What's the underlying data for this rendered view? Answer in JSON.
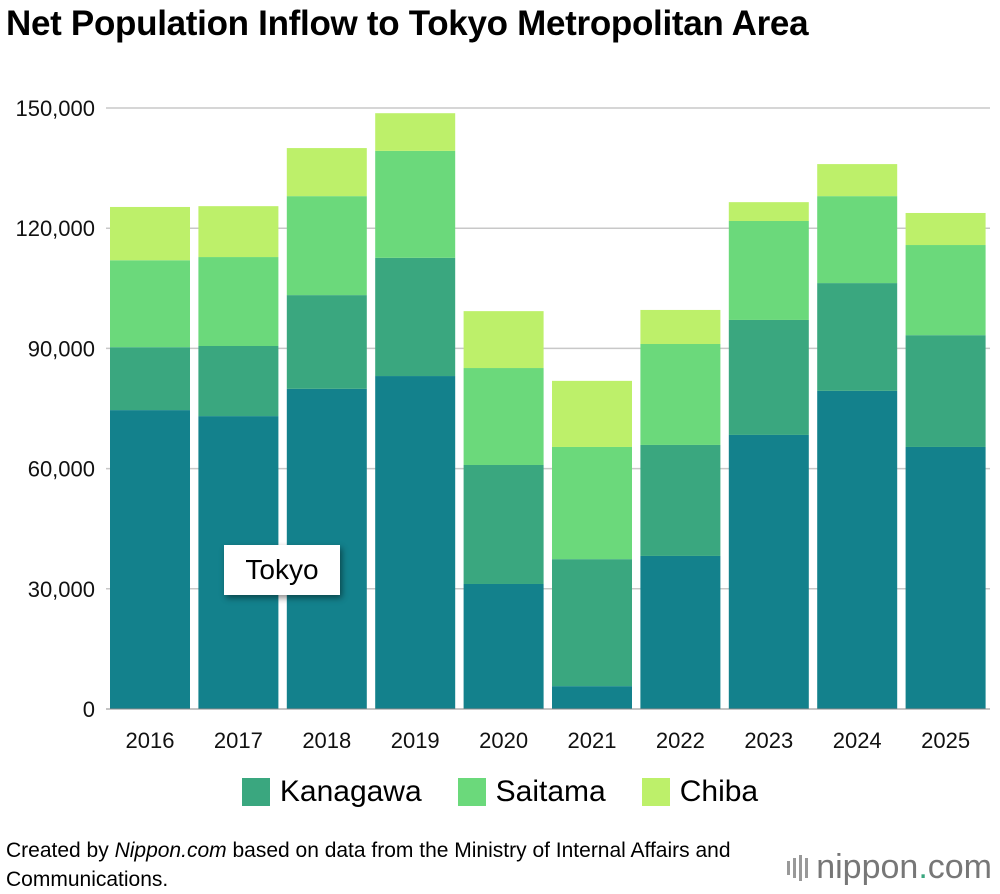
{
  "title": "Net Population Inflow to Tokyo Metropolitan Area",
  "chart_data": {
    "type": "bar",
    "stacked": true,
    "categories": [
      "2016",
      "2017",
      "2018",
      "2019",
      "2020",
      "2021",
      "2022",
      "2023",
      "2024",
      "2025"
    ],
    "series": [
      {
        "name": "Tokyo",
        "color": "#13818c",
        "values": [
          74600,
          73100,
          79900,
          83100,
          31200,
          5700,
          38200,
          68400,
          79400,
          65400
        ]
      },
      {
        "name": "Kanagawa",
        "color": "#3aa77f",
        "values": [
          15700,
          17500,
          23400,
          29500,
          29700,
          31700,
          27700,
          28700,
          26900,
          27900
        ]
      },
      {
        "name": "Saitama",
        "color": "#6bd97b",
        "values": [
          21700,
          22200,
          24700,
          26700,
          24200,
          28000,
          25200,
          24700,
          21700,
          22500
        ]
      },
      {
        "name": "Chiba",
        "color": "#bdf06a",
        "values": [
          13300,
          12700,
          12000,
          9400,
          14200,
          16500,
          8500,
          4700,
          8000,
          8000
        ]
      }
    ],
    "yticks": [
      "0",
      "30,000",
      "60,000",
      "90,000",
      "120,000",
      "150,000"
    ],
    "ylim": [
      0,
      150000
    ],
    "grid": true,
    "legend_placement": "bottom",
    "xlabel": "",
    "ylabel": ""
  },
  "annotation": "Tokyo",
  "legend": [
    "Kanagawa",
    "Saitama",
    "Chiba"
  ],
  "footer": {
    "prefix": "Created by ",
    "site": "Nippon.com",
    "suffix": " based on data from the Ministry of Internal Affairs and Communications."
  },
  "logo": {
    "text_main": "nippon",
    "text_dot": ".",
    "text_tld": "com"
  }
}
